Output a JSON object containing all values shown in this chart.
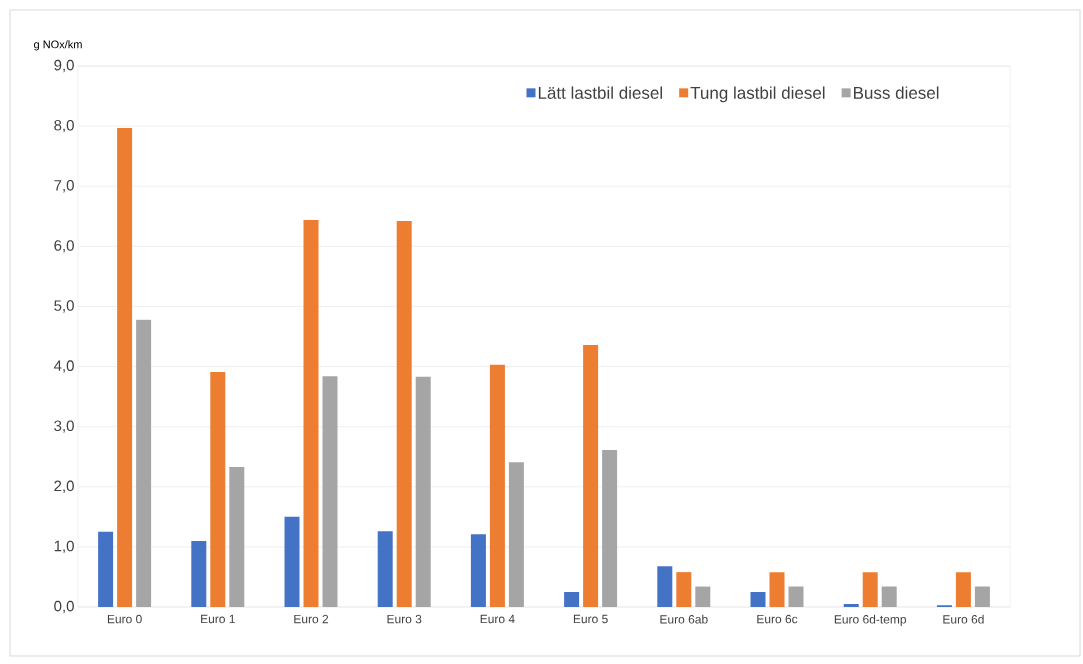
{
  "chart_data": {
    "type": "bar",
    "ylabel": "g NOx/km",
    "categories": [
      "Euro 0",
      "Euro 1",
      "Euro 2",
      "Euro 3",
      "Euro 4",
      "Euro 5",
      "Euro 6ab",
      "Euro 6c",
      "Euro 6d-temp",
      "Euro 6d"
    ],
    "series": [
      {
        "name": "Lätt lastbil diesel",
        "color": "#4472c4",
        "values": [
          1.25,
          1.1,
          1.5,
          1.26,
          1.21,
          0.25,
          0.68,
          0.25,
          0.05,
          0.03
        ]
      },
      {
        "name": "Tung lastbil diesel",
        "color": "#ed7d31",
        "values": [
          7.97,
          3.91,
          6.44,
          6.42,
          4.03,
          4.36,
          0.58,
          0.58,
          0.58,
          0.58
        ]
      },
      {
        "name": "Buss diesel",
        "color": "#a5a5a5",
        "values": [
          4.78,
          2.33,
          3.84,
          3.83,
          2.41,
          2.61,
          0.34,
          0.34,
          0.34,
          0.34
        ]
      }
    ],
    "ylim": [
      0,
      9
    ],
    "yticks": [
      {
        "value": 0,
        "label": "0,0"
      },
      {
        "value": 1,
        "label": "1,0"
      },
      {
        "value": 2,
        "label": "2,0"
      },
      {
        "value": 3,
        "label": "3,0"
      },
      {
        "value": 4,
        "label": "4,0"
      },
      {
        "value": 5,
        "label": "5,0"
      },
      {
        "value": 6,
        "label": "6,0"
      },
      {
        "value": 7,
        "label": "7,0"
      },
      {
        "value": 8,
        "label": "8,0"
      },
      {
        "value": 9,
        "label": "9,0"
      }
    ],
    "grid": "y",
    "legend": "top right"
  }
}
